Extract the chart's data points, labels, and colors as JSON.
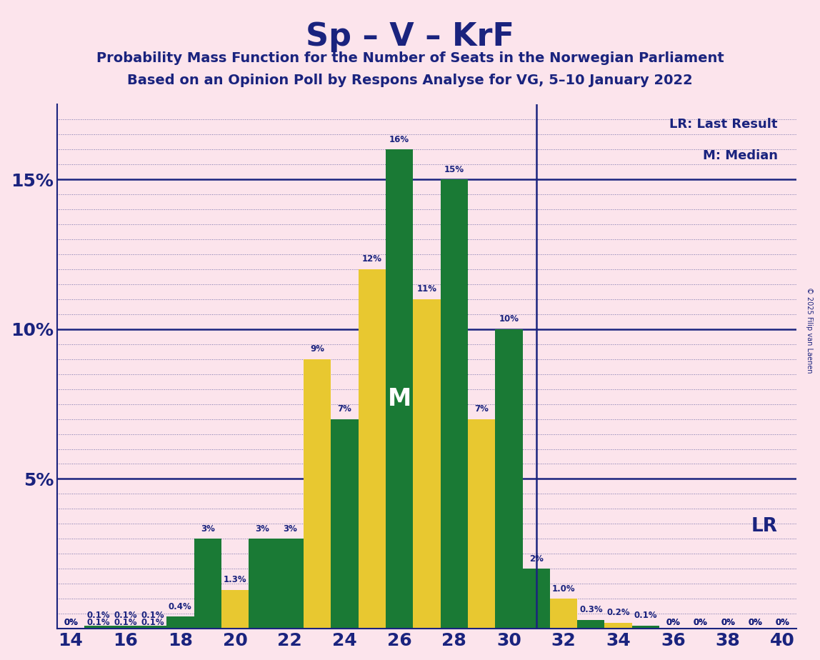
{
  "title": "Sp – V – KrF",
  "subtitle1": "Probability Mass Function for the Number of Seats in the Norwegian Parliament",
  "subtitle2": "Based on an Opinion Poll by Respons Analyse for VG, 5–10 January 2022",
  "copyright": "© 2025 Filip van Laenen",
  "lr_label": "LR: Last Result",
  "m_label": "M: Median",
  "lr_text": "LR",
  "m_text": "M",
  "background_color": "#fce4ec",
  "bar_color_green": "#1a7a35",
  "bar_color_yellow": "#e8c830",
  "axis_color": "#1a237e",
  "text_color": "#1a237e",
  "seats": [
    14,
    15,
    16,
    17,
    18,
    19,
    20,
    21,
    22,
    23,
    24,
    25,
    26,
    27,
    28,
    29,
    30,
    31,
    32,
    33,
    34,
    35,
    36,
    37,
    38,
    39,
    40
  ],
  "values": [
    0.0,
    0.1,
    0.1,
    0.1,
    0.4,
    3.0,
    1.3,
    3.0,
    3.0,
    9.0,
    7.0,
    12.0,
    16.0,
    11.0,
    15.0,
    7.0,
    10.0,
    2.0,
    1.0,
    0.3,
    0.2,
    0.1,
    0.0,
    0.0,
    0.0,
    0.0,
    0.0
  ],
  "bar_colors": [
    "g",
    "g",
    "g",
    "g",
    "g",
    "g",
    "y",
    "g",
    "g",
    "y",
    "g",
    "y",
    "g",
    "y",
    "g",
    "y",
    "g",
    "g",
    "y",
    "g",
    "y",
    "g",
    "g",
    "g",
    "g",
    "g",
    "g"
  ],
  "labels": [
    "0%",
    "0.1%",
    "0.1%",
    "0.1%",
    "0.4%",
    "3%",
    "1.3%",
    "3%",
    "3%",
    "9%",
    "7%",
    "12%",
    "16%",
    "11%",
    "15%",
    "7%",
    "10%",
    "2%",
    "1.0%",
    "0.3%",
    "0.2%",
    "0.1%",
    "0%",
    "0%",
    "0%",
    "0%",
    "0%"
  ],
  "lr_seat": 31,
  "median_seat": 26,
  "ylim": [
    0,
    17.5
  ],
  "yticks": [
    0,
    5,
    10,
    15
  ],
  "ytick_labels": [
    "",
    "5%",
    "10%",
    "15%"
  ],
  "xlim": [
    13.5,
    40.5
  ],
  "xticks": [
    14,
    16,
    18,
    20,
    22,
    24,
    26,
    28,
    30,
    32,
    34,
    36,
    38,
    40
  ],
  "bar_width": 1.0,
  "label_fontsize": 8.5,
  "tick_fontsize": 18,
  "title_fontsize": 32,
  "subtitle_fontsize": 14
}
